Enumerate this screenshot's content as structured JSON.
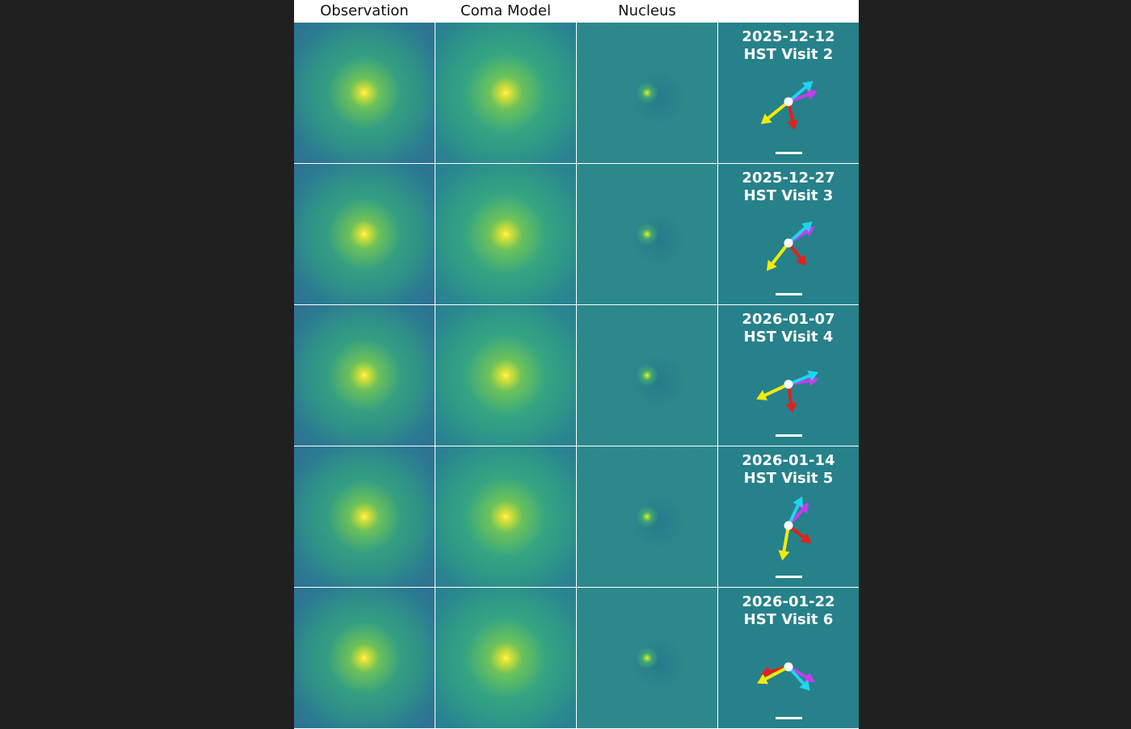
{
  "columns": [
    "Observation",
    "Coma Model",
    "Nucleus",
    ""
  ],
  "rows": [
    {
      "date": "2025-12-12",
      "visit": "HST Visit 2",
      "arrows": {
        "cyan": 40,
        "magenta": 20,
        "red": -78,
        "yellow": -141
      }
    },
    {
      "date": "2025-12-27",
      "visit": "HST Visit 3",
      "arrows": {
        "cyan": 42,
        "magenta": 32,
        "red": -52,
        "yellow": -128
      }
    },
    {
      "date": "2026-01-07",
      "visit": "HST Visit 4",
      "arrows": {
        "cyan": 22,
        "magenta": 10,
        "red": -82,
        "yellow": -155
      }
    },
    {
      "date": "2026-01-14",
      "visit": "HST Visit 5",
      "arrows": {
        "cyan": 65,
        "magenta": 48,
        "red": -38,
        "yellow": -100
      }
    },
    {
      "date": "2026-01-22",
      "visit": "HST Visit 6",
      "arrows": {
        "cyan": -48,
        "magenta": -30,
        "red": -165,
        "yellow": -152
      }
    }
  ],
  "colors": {
    "cyan": "#1fd5ee",
    "magenta": "#c83cf0",
    "red": "#e3201c",
    "yellow": "#f4ea0a",
    "panel": "#26818a"
  }
}
